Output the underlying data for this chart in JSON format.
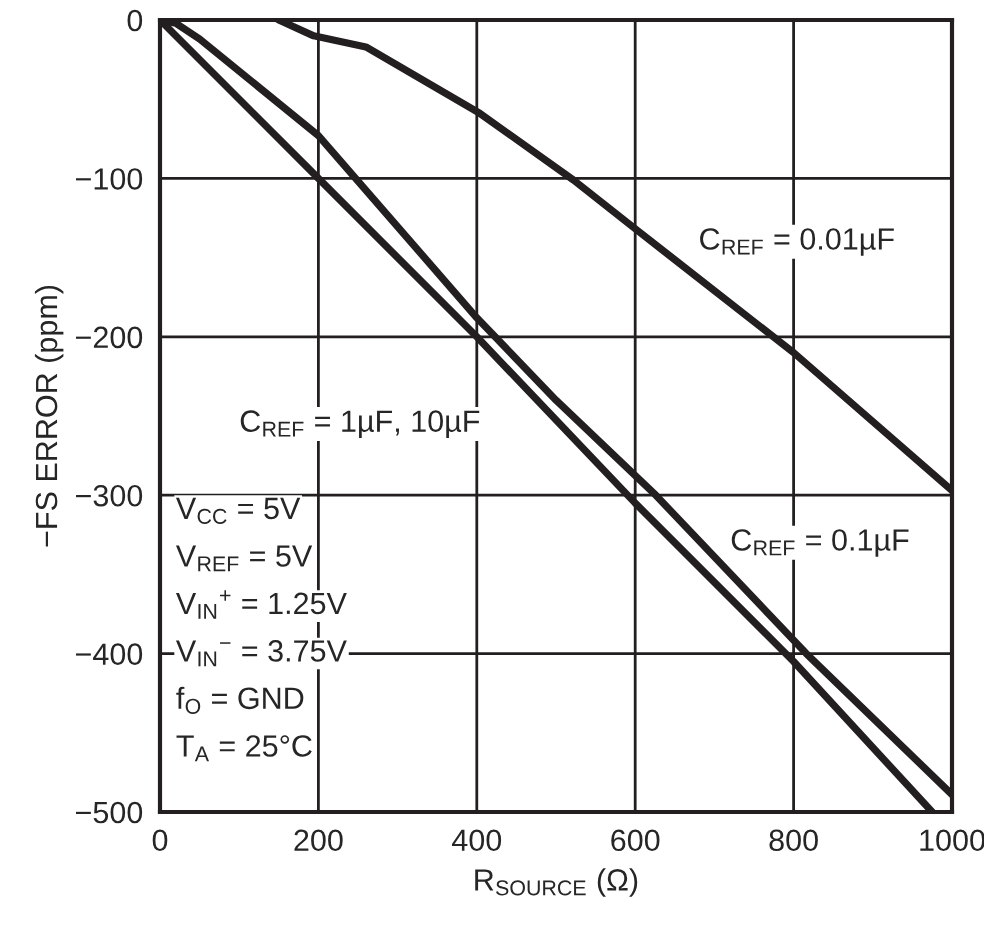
{
  "chart_data": {
    "type": "line",
    "xlabel": "R$_{SOURCE}$ (Ω)",
    "ylabel": "−FS ERROR (ppm)",
    "xlim": [
      0,
      1000
    ],
    "xticks": [
      0,
      200,
      400,
      600,
      800,
      1000
    ],
    "ylim": [
      -500,
      0
    ],
    "yticks": [
      {
        "value": -500,
        "label": "−500"
      },
      {
        "value": -400,
        "label": "−400"
      },
      {
        "value": -300,
        "label": "−300"
      },
      {
        "value": -200,
        "label": "−200"
      },
      {
        "value": -100,
        "label": "−100"
      },
      0
    ],
    "grid": true,
    "line_style": "solid",
    "marker": "none",
    "series": [
      {
        "name": "C$_{REF}$ = 1µF, 10µF",
        "color": "#231f20",
        "x": [
          0,
          200,
          400,
          600,
          800,
          975
        ],
        "values": [
          0,
          -100,
          -200,
          -305,
          -405,
          -500
        ]
      },
      {
        "name": "C$_{REF}$ = 0.1µF",
        "color": "#231f20",
        "x": [
          0,
          20,
          50,
          200,
          400,
          500,
          626,
          816,
          1000
        ],
        "values": [
          0,
          -2,
          -12,
          -73,
          -188,
          -240,
          -300,
          -400,
          -489
        ]
      },
      {
        "name": "C$_{REF}$ = 0.01µF",
        "color": "#231f20",
        "x": [
          150,
          194,
          260,
          404,
          522,
          598,
          800,
          1000
        ],
        "values": [
          0,
          -10,
          -17,
          -59,
          -101,
          -131,
          -210,
          -297
        ]
      }
    ],
    "annotations": [
      "V$_{CC}$ = 5V",
      "V$_{REF}$ = 5V",
      "V$_{IN}$$^{+}$ = 1.25V",
      "V$_{IN}$$^{−}$ = 3.75V",
      "f$_{O}$ = GND",
      "T$_{A}$ = 25°C"
    ]
  }
}
